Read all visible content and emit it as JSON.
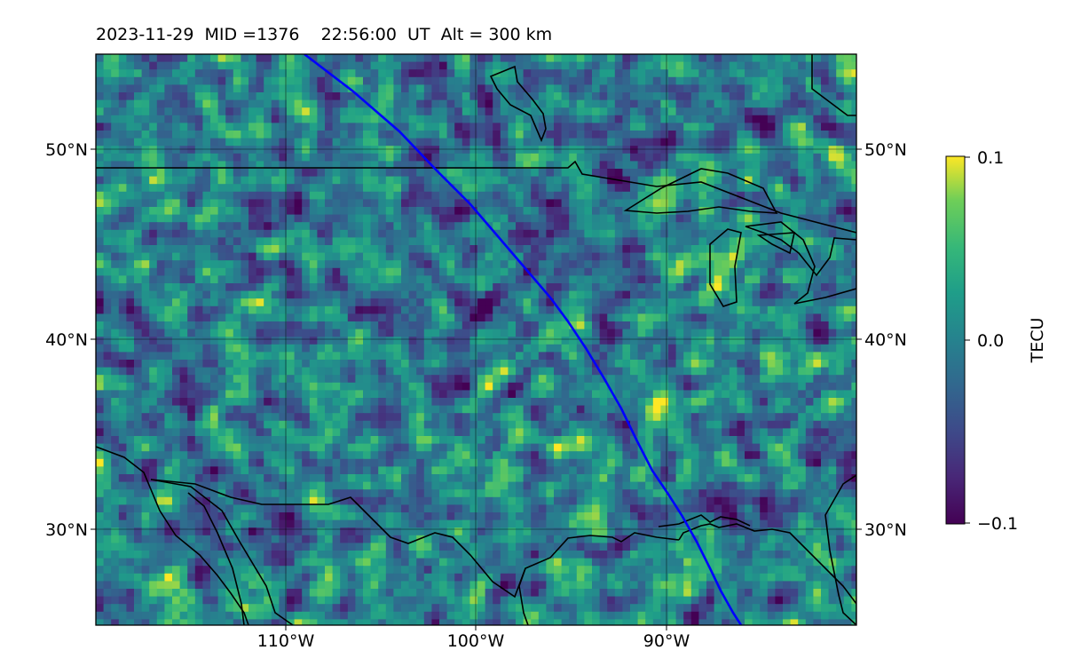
{
  "title": "2023-11-29  MID =1376    22:56:00  UT  Alt = 300 km",
  "map": {
    "lat_labels_left": [
      "50°N",
      "40°N",
      "30°N"
    ],
    "lat_labels_right": [
      "50°N",
      "40°N",
      "30°N"
    ],
    "lon_labels": [
      "110°W",
      "100°W",
      "90°W"
    ],
    "lat_range": [
      25,
      55
    ],
    "lon_range": [
      -120,
      -80
    ],
    "field": "differential TEC map, viridis colormap",
    "track_color": "#0000ff",
    "coastline_color": "#000000"
  },
  "colorbar": {
    "label": "TECU",
    "tick_labels": [
      "0.1",
      "0.0",
      "−0.1"
    ],
    "vmin": -0.1,
    "vmax": 0.1,
    "colormap": "viridis"
  }
}
